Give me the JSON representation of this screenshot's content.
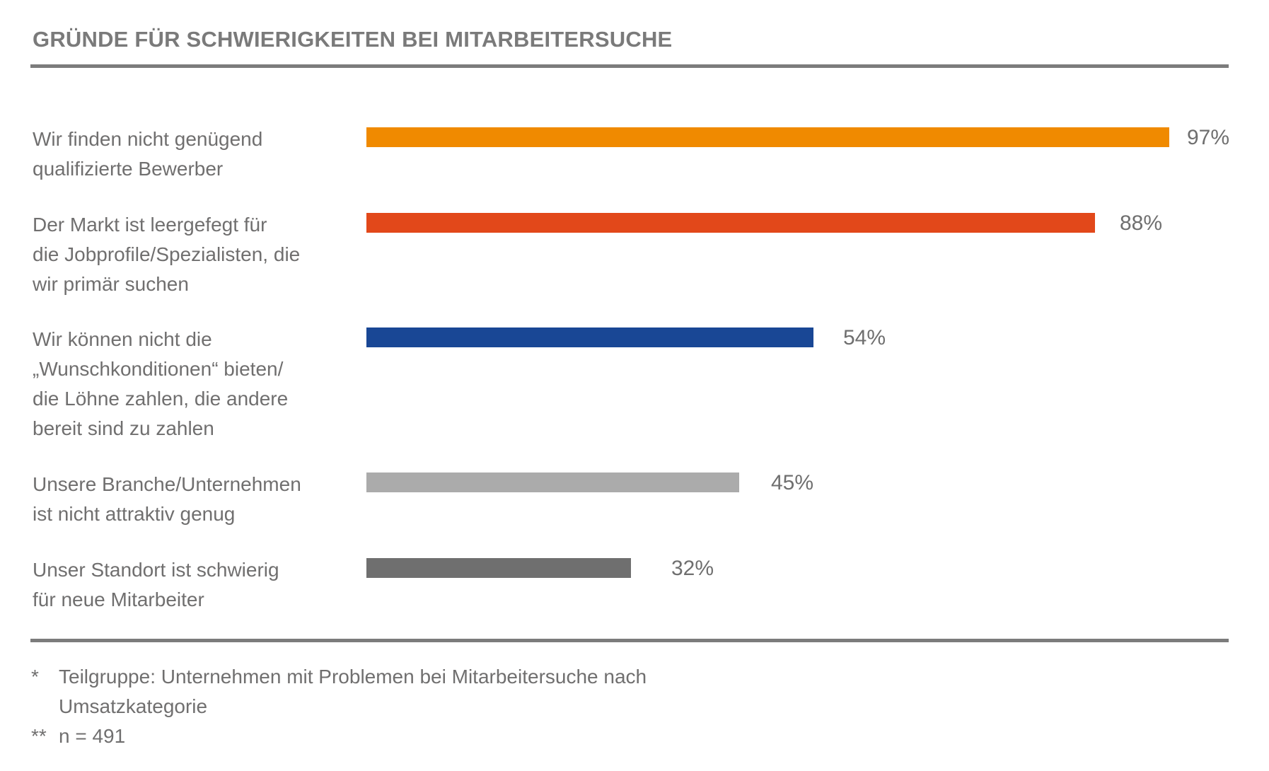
{
  "page": {
    "background": "#ffffff"
  },
  "header": {
    "title": "GRÜNDE FÜR SCHWIERIGKEITEN BEI MITARBEITERSUCHE",
    "title_color": "#7a7a7a",
    "rule_color": "#7c7c7c"
  },
  "chart_data": {
    "type": "bar",
    "orientation": "horizontal",
    "title": "GRÜNDE FÜR SCHWIERIGKEITEN BEI MITARBEITERSUCHE",
    "categories": [
      "Wir finden nicht genügend qualifizierte Bewerber",
      "Der Markt ist leergefegt für die Jobprofile/Spezialisten, die wir primär suchen",
      "Wir können nicht die „Wunschkonditionen“ bieten/die Löhne zahlen, die andere bereit sind zu zahlen",
      "Unsere Branche/Unternehmen ist nicht attraktiv genug",
      "Unser Standort ist schwierig für neue Mitarbeiter"
    ],
    "label_lines": [
      [
        "Wir finden nicht genügend",
        "qualifizierte Bewerber"
      ],
      [
        "Der Markt ist leergefegt für",
        "die Jobprofile/Spezialisten, die",
        "wir primär suchen"
      ],
      [
        "Wir können nicht die",
        "„Wunschkonditionen“ bieten/",
        "die Löhne zahlen, die andere",
        "bereit sind zu zahlen"
      ],
      [
        "Unsere Branche/Unternehmen",
        "ist nicht attraktiv genug"
      ],
      [
        "Unser Standort ist schwierig",
        "für neue Mitarbeiter"
      ]
    ],
    "values": [
      97,
      88,
      54,
      45,
      32
    ],
    "unit": "%",
    "value_labels": [
      "97%",
      "88%",
      "54%",
      "45%",
      "32%"
    ],
    "bar_colors": [
      "#f08a00",
      "#e2481a",
      "#194795",
      "#ababab",
      "#6f6f6f"
    ],
    "xlim": [
      0,
      100
    ],
    "grid": false,
    "legend": false,
    "label_color": "#706f6f",
    "value_label_color": "#6f6f6f"
  },
  "footnotes": [
    {
      "marker": "*",
      "lines": [
        "Teilgruppe: Unternehmen mit Problemen bei Mitarbeitersuche nach",
        "Umsatzkategorie"
      ]
    },
    {
      "marker": "**",
      "lines": [
        "n = 491"
      ]
    }
  ]
}
